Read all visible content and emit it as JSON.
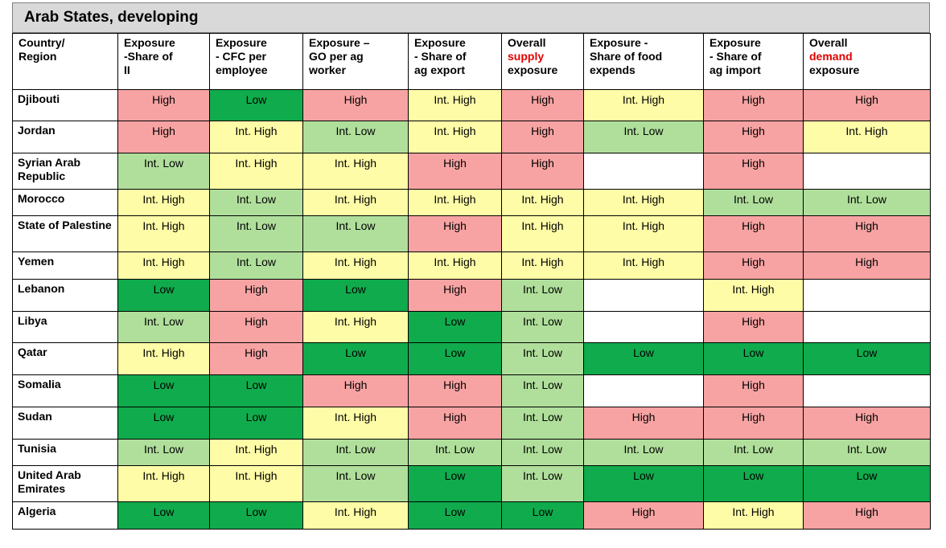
{
  "title": "Arab States, developing",
  "headers": [
    {
      "parts": [
        {
          "t": "Country/"
        },
        {
          "t": "Region"
        }
      ]
    },
    {
      "parts": [
        {
          "t": "Exposure"
        },
        {
          "t": "-Share of"
        },
        {
          "t": "II"
        }
      ]
    },
    {
      "parts": [
        {
          "t": "Exposure"
        },
        {
          "t": "- CFC per"
        },
        {
          "t": "employee"
        }
      ]
    },
    {
      "parts": [
        {
          "t": "Exposure –"
        },
        {
          "t": "GO per ag"
        },
        {
          "t": "worker"
        }
      ]
    },
    {
      "parts": [
        {
          "t": "Exposure"
        },
        {
          "t": "- Share of"
        },
        {
          "t": "ag export"
        }
      ]
    },
    {
      "parts": [
        {
          "t": "Overall"
        },
        {
          "t": "supply",
          "red": true
        },
        {
          "t": "exposure"
        }
      ]
    },
    {
      "parts": [
        {
          "t": "Exposure -"
        },
        {
          "t": "Share of food"
        },
        {
          "t": "expends"
        }
      ]
    },
    {
      "parts": [
        {
          "t": "Exposure"
        },
        {
          "t": "- Share of"
        },
        {
          "t": "ag import"
        }
      ]
    },
    {
      "parts": [
        {
          "t": "Overall"
        },
        {
          "t": "demand",
          "red": true
        },
        {
          "t": "exposure"
        }
      ]
    }
  ],
  "rows": [
    {
      "country": "Djibouti",
      "cells": [
        "High",
        "Low",
        "High",
        "Int. High",
        "High",
        "Int. High",
        "High",
        "High"
      ]
    },
    {
      "country": "Jordan",
      "cells": [
        "High",
        "Int. High",
        "Int. Low",
        "Int. High",
        "High",
        "Int. Low",
        "High",
        "Int. High"
      ]
    },
    {
      "country": "Syrian Arab Republic",
      "cells": [
        "Int. Low",
        "Int. High",
        "Int. High",
        "High",
        "High",
        "",
        "High",
        ""
      ]
    },
    {
      "country": "Morocco",
      "cells": [
        "Int. High",
        "Int. Low",
        "Int. High",
        "Int. High",
        "Int. High",
        "Int. High",
        "Int. Low",
        "Int. Low"
      ]
    },
    {
      "country": "State of Palestine",
      "cells": [
        "Int. High",
        "Int. Low",
        "Int. Low",
        "High",
        "Int. High",
        "Int. High",
        "High",
        "High"
      ]
    },
    {
      "country": "Yemen",
      "cells": [
        "Int. High",
        "Int. Low",
        "Int. High",
        "Int. High",
        "Int. High",
        "Int. High",
        "High",
        "High"
      ]
    },
    {
      "country": "Lebanon",
      "cells": [
        "Low",
        "High",
        "Low",
        "High",
        "Int. Low",
        "",
        "Int. High",
        ""
      ]
    },
    {
      "country": "Libya",
      "cells": [
        "Int. Low",
        "High",
        "Int. High",
        "Low",
        "Int. Low",
        "",
        "High",
        ""
      ]
    },
    {
      "country": "Qatar",
      "cells": [
        "Int. High",
        "High",
        "Low",
        "Low",
        "Int. Low",
        "Low",
        "Low",
        "Low"
      ]
    },
    {
      "country": "Somalia",
      "cells": [
        "Low",
        "Low",
        "High",
        "High",
        "Int. Low",
        "",
        "High",
        ""
      ]
    },
    {
      "country": "Sudan",
      "cells": [
        "Low",
        "Low",
        "Int. High",
        "High",
        "Int. Low",
        "High",
        "High",
        "High"
      ]
    },
    {
      "country": "Tunisia",
      "cells": [
        "Int. Low",
        "Int. High",
        "Int. Low",
        "Int. Low",
        "Int. Low",
        "Int. Low",
        "Int. Low",
        "Int. Low"
      ]
    },
    {
      "country": "United Arab Emirates",
      "cells": [
        "Int. High",
        "Int. High",
        "Int. Low",
        "Low",
        "Int. Low",
        "Low",
        "Low",
        "Low"
      ]
    },
    {
      "country": "Algeria",
      "cells": [
        "Low",
        "Low",
        "Int. High",
        "Low",
        "Low",
        "High",
        "Int. High",
        "High"
      ]
    }
  ],
  "colors": {
    "High": "#f8a3a3",
    "Int. High": "#fefca7",
    "Int. Low": "#b0df9c",
    "Low": "#10ab4c",
    "blank": "#ffffff",
    "header_bg": "#d9d9d9",
    "emphasis_red": "#e00000"
  }
}
